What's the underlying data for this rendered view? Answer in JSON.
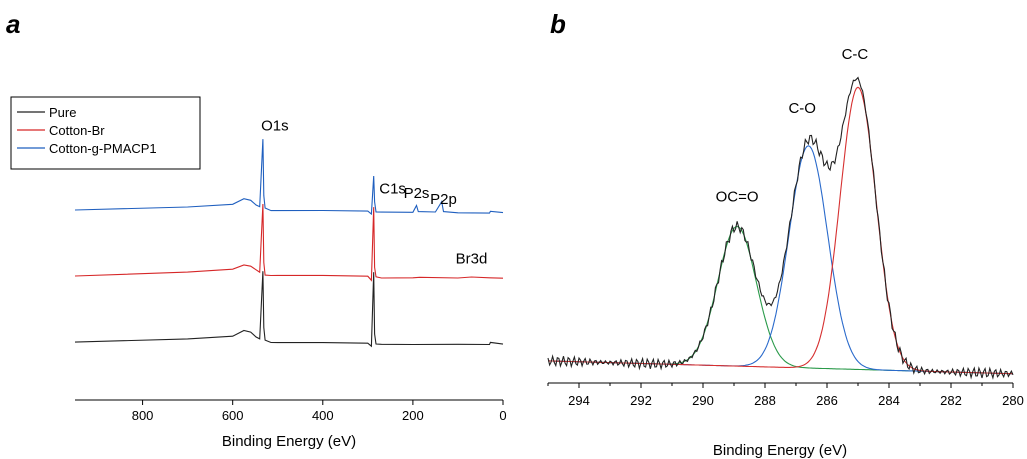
{
  "panels": {
    "a": {
      "letter": "a"
    },
    "b": {
      "letter": "b"
    }
  },
  "chart_data": [
    {
      "type": "line",
      "panel": "a",
      "xlabel": "Binding Energy (eV)",
      "ylabel": "",
      "xlim": [
        950,
        0
      ],
      "x_reversed": true,
      "xticks": [
        800,
        600,
        400,
        200,
        0
      ],
      "y_axis_shown": false,
      "legend": {
        "placement": "top-left",
        "entries": [
          "Pure",
          "Cotton-Br",
          "Cotton-g-PMACP1"
        ]
      },
      "series": [
        {
          "name": "Pure",
          "color": "#222222",
          "offset": 0.0,
          "x": [
            950,
            700,
            600,
            575,
            560,
            548,
            540,
            533,
            531,
            528,
            515,
            500,
            400,
            300,
            292,
            287,
            285,
            282,
            270,
            200,
            100,
            30,
            28,
            0
          ],
          "y": [
            0.0,
            0.05,
            0.09,
            0.16,
            0.14,
            0.08,
            0.05,
            1.02,
            0.2,
            0.02,
            0.0,
            0.0,
            0.0,
            -0.01,
            -0.06,
            0.99,
            0.12,
            -0.02,
            -0.03,
            -0.03,
            -0.03,
            -0.03,
            -0.01,
            -0.03
          ]
        },
        {
          "name": "Cotton-Br",
          "color": "#d62728",
          "offset": 0.55,
          "x": [
            950,
            700,
            600,
            575,
            560,
            548,
            540,
            533,
            531,
            528,
            515,
            500,
            400,
            300,
            292,
            287,
            285,
            282,
            270,
            200,
            185,
            100,
            70,
            30,
            0
          ],
          "y": [
            0.0,
            0.05,
            0.09,
            0.16,
            0.14,
            0.08,
            0.05,
            1.02,
            0.2,
            0.02,
            0.0,
            0.0,
            0.0,
            -0.01,
            -0.06,
            0.99,
            0.12,
            -0.02,
            -0.03,
            -0.03,
            -0.02,
            -0.03,
            -0.01,
            -0.03,
            -0.03
          ]
        },
        {
          "name": "Cotton-g-PMACP1",
          "color": "#1f5fbf",
          "offset": 1.1,
          "x": [
            950,
            700,
            600,
            575,
            560,
            548,
            540,
            533,
            531,
            528,
            515,
            500,
            400,
            300,
            292,
            287,
            285,
            282,
            270,
            200,
            192,
            188,
            150,
            136,
            132,
            100,
            30,
            28,
            0
          ],
          "y": [
            0.0,
            0.05,
            0.09,
            0.16,
            0.14,
            0.08,
            0.05,
            1.02,
            0.2,
            0.02,
            0.0,
            0.0,
            0.0,
            -0.01,
            -0.06,
            0.48,
            0.12,
            -0.02,
            -0.03,
            -0.03,
            0.06,
            -0.03,
            -0.03,
            0.11,
            -0.03,
            -0.04,
            -0.04,
            -0.02,
            -0.04
          ]
        }
      ],
      "annotations": [
        {
          "text": "O1s",
          "x": 533,
          "series": 2,
          "kind": "peak"
        },
        {
          "text": "C1s",
          "x": 285,
          "series": 2,
          "kind": "peak"
        },
        {
          "text": "P2s",
          "x": 192,
          "series": 2,
          "kind": "peak"
        },
        {
          "text": "P2p",
          "x": 132,
          "series": 2,
          "kind": "peak"
        },
        {
          "text": "Br3d",
          "x": 70,
          "series": 1,
          "kind": "peak"
        }
      ]
    },
    {
      "type": "line",
      "panel": "b",
      "xlabel": "Binding Energy (eV)",
      "ylabel": "",
      "xlim": [
        295,
        280
      ],
      "x_reversed": true,
      "xticks": [
        294,
        292,
        290,
        288,
        286,
        284,
        282,
        280
      ],
      "y_axis_shown": false,
      "baseline": 0.06,
      "components": [
        {
          "name": "",
          "color": "#2a9a4a",
          "center": 288.9,
          "amplitude": 0.49,
          "sigma": 0.62
        },
        {
          "name": "",
          "color": "#2a6acb",
          "center": 286.6,
          "amplitude": 0.78,
          "sigma": 0.62
        },
        {
          "name": "",
          "color": "#d63030",
          "center": 285.0,
          "amplitude": 0.99,
          "sigma": 0.58
        }
      ],
      "envelope": {
        "name": "",
        "color": "#222222"
      },
      "annotations": [
        {
          "text": "OC=O",
          "x": 288.9,
          "y": 0.62
        },
        {
          "text": "C-O",
          "x": 286.8,
          "y": 0.93
        },
        {
          "text": "C-C",
          "x": 285.1,
          "y": 1.12
        }
      ]
    }
  ]
}
